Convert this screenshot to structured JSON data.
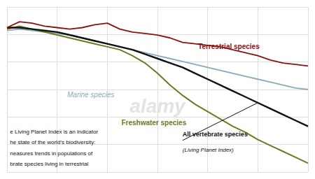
{
  "chart_data": {
    "type": "line",
    "x": [
      0,
      1,
      2,
      3,
      4,
      5,
      6,
      7,
      8,
      9,
      10,
      11,
      12,
      13,
      14,
      15,
      16,
      17,
      18,
      19,
      20,
      21,
      22,
      23,
      24
    ],
    "xlim": [
      0,
      24
    ],
    "xticks": [
      0,
      4,
      8,
      12,
      16,
      20,
      24
    ],
    "ylim": [
      0.0,
      1.12
    ],
    "yticks": [
      0,
      0.18666666666666668,
      0.37333333333333335,
      0.56,
      0.7466666666666667,
      0.9333333333333333,
      1.12
    ],
    "grid": true,
    "tick_labels": false,
    "series": [
      {
        "name": "Marine species",
        "color": "#8aacb8",
        "values": [
          0.96,
          0.97,
          0.96,
          0.95,
          0.94,
          0.93,
          0.91,
          0.89,
          0.87,
          0.85,
          0.83,
          0.81,
          0.79,
          0.77,
          0.75,
          0.73,
          0.71,
          0.69,
          0.67,
          0.65,
          0.63,
          0.61,
          0.59,
          0.57,
          0.56
        ]
      },
      {
        "name": "Freshwater species",
        "color": "#6b7c1e",
        "values": [
          0.97,
          0.99,
          0.97,
          0.95,
          0.93,
          0.91,
          0.89,
          0.87,
          0.85,
          0.83,
          0.79,
          0.74,
          0.67,
          0.59,
          0.52,
          0.46,
          0.41,
          0.36,
          0.31,
          0.27,
          0.22,
          0.18,
          0.14,
          0.1,
          0.06
        ]
      },
      {
        "name": "All vertebrate species",
        "color": "#111111",
        "values": [
          0.98,
          0.98,
          0.97,
          0.96,
          0.95,
          0.93,
          0.91,
          0.89,
          0.87,
          0.85,
          0.83,
          0.8,
          0.77,
          0.74,
          0.71,
          0.67,
          0.63,
          0.59,
          0.55,
          0.51,
          0.47,
          0.43,
          0.39,
          0.35,
          0.31
        ]
      },
      {
        "name": "Terrestrial species",
        "color": "#8b1010",
        "values": [
          0.98,
          1.02,
          1.01,
          0.99,
          0.98,
          0.97,
          0.98,
          1.0,
          1.01,
          0.97,
          0.95,
          0.94,
          0.93,
          0.91,
          0.88,
          0.87,
          0.86,
          0.85,
          0.83,
          0.81,
          0.79,
          0.76,
          0.74,
          0.73,
          0.72
        ]
      }
    ],
    "annotations": [
      "(Living Planet Index)",
      "e Living Planet Index is an indicator",
      "he state of the world’s biodiversity:",
      "neasures trends in populations of",
      "brate species living in terrestrial",
      "alamy"
    ]
  }
}
